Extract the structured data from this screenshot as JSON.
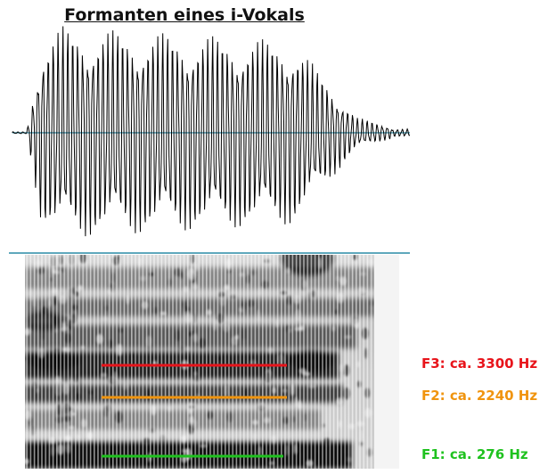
{
  "title": "Formanten eines i-Vokals",
  "colors": {
    "waveform": "#000000",
    "baseline": "#2a8ba6",
    "f3": "#e8141b",
    "f2": "#f0940e",
    "f1": "#1fc21f"
  },
  "formants": [
    {
      "id": "f3",
      "label": "F3: ca. 3300 Hz",
      "hz": 3300
    },
    {
      "id": "f2",
      "label": "F2: ca. 2240 Hz",
      "hz": 2240
    },
    {
      "id": "f1",
      "label": "F1: ca. 276 Hz",
      "hz": 276
    }
  ]
}
